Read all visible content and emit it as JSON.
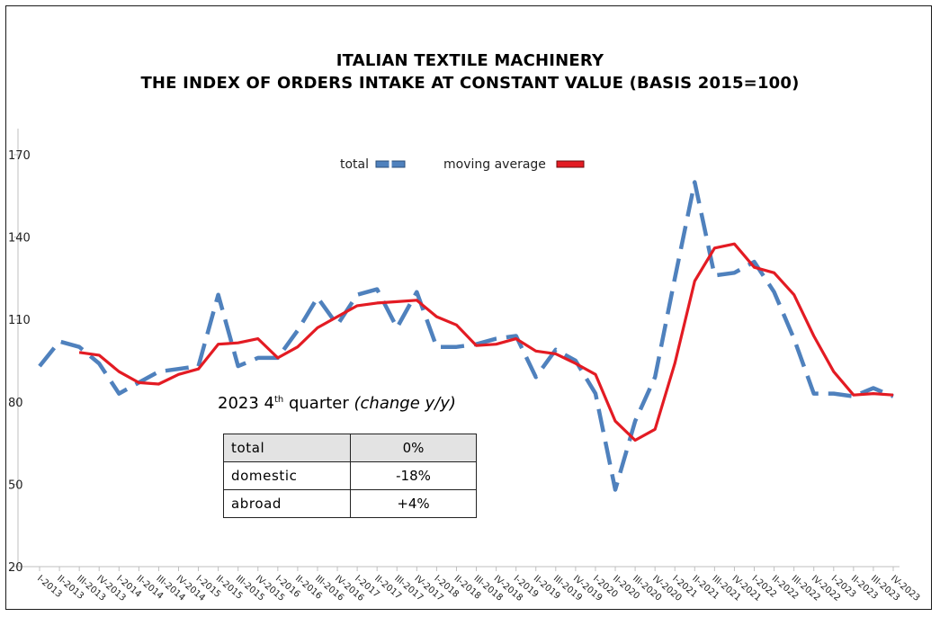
{
  "chart_data": {
    "type": "line",
    "title_line1": "ITALIAN TEXTILE MACHINERY",
    "title_line2": "THE INDEX OF ORDERS INTAKE AT CONSTANT VALUE (BASIS 2015=100)",
    "xlabel": "",
    "ylabel": "",
    "ylim": [
      20,
      170
    ],
    "yticks": [
      20,
      50,
      80,
      110,
      140,
      170
    ],
    "grid": false,
    "legend_position": "top-center",
    "categories": [
      "I-2013",
      "II-2013",
      "III-2013",
      "IV-2013",
      "I-2014",
      "II-2014",
      "III-2014",
      "IV-2014",
      "I-2015",
      "II-2015",
      "III-2015",
      "IV-2015",
      "I-2016",
      "II-2016",
      "III-2016",
      "IV-2016",
      "I-2017",
      "II-2017",
      "III-2017",
      "IV-2017",
      "I-2018",
      "II-2018",
      "III-2018",
      "IV-2018",
      "I-2019",
      "II-2019",
      "III-2019",
      "IV-2019",
      "I-2020",
      "II-2020",
      "III-2020",
      "IV-2020",
      "I-2021",
      "II-2021",
      "III-2021",
      "IV-2021",
      "I-2022",
      "II-2022",
      "III-2022",
      "IV-2022",
      "I-2023",
      "II-2023",
      "III-2023",
      "IV-2023"
    ],
    "series": [
      {
        "name": "total",
        "color": "#4f81bd",
        "style": "dashed",
        "values": [
          93,
          102,
          100,
          94,
          83,
          87,
          91,
          92,
          93,
          119,
          93,
          96,
          96,
          106,
          118,
          108,
          119,
          121,
          107,
          120,
          100,
          100,
          101,
          103,
          104,
          89,
          99,
          95,
          83,
          48,
          73,
          89,
          125,
          160,
          126,
          127,
          131,
          120,
          103,
          83,
          83,
          82,
          85,
          82
        ]
      },
      {
        "name": "moving average",
        "color": "#e31b23",
        "style": "solid",
        "values": [
          null,
          null,
          98,
          97,
          91,
          87,
          86.5,
          90,
          92,
          101,
          101.5,
          103,
          96,
          100,
          107,
          111,
          115,
          116,
          116.5,
          117,
          111,
          108,
          100.5,
          101,
          103,
          98.5,
          97.5,
          94,
          90,
          73,
          66,
          70,
          94,
          124,
          136,
          137.5,
          129,
          127,
          119,
          104,
          91,
          82.5,
          83,
          82.5
        ]
      }
    ]
  },
  "legend": {
    "total_label": "total",
    "moving_average_label": "moving average"
  },
  "summary": {
    "heading_main": "2023 4",
    "heading_sup": "th",
    "heading_rest": " quarter ",
    "heading_italic": "(change y/y)",
    "rows": [
      {
        "label": "total",
        "value": "0%"
      },
      {
        "label": "domestic",
        "value": "-18%"
      },
      {
        "label": "abroad",
        "value": "+4%"
      }
    ]
  }
}
